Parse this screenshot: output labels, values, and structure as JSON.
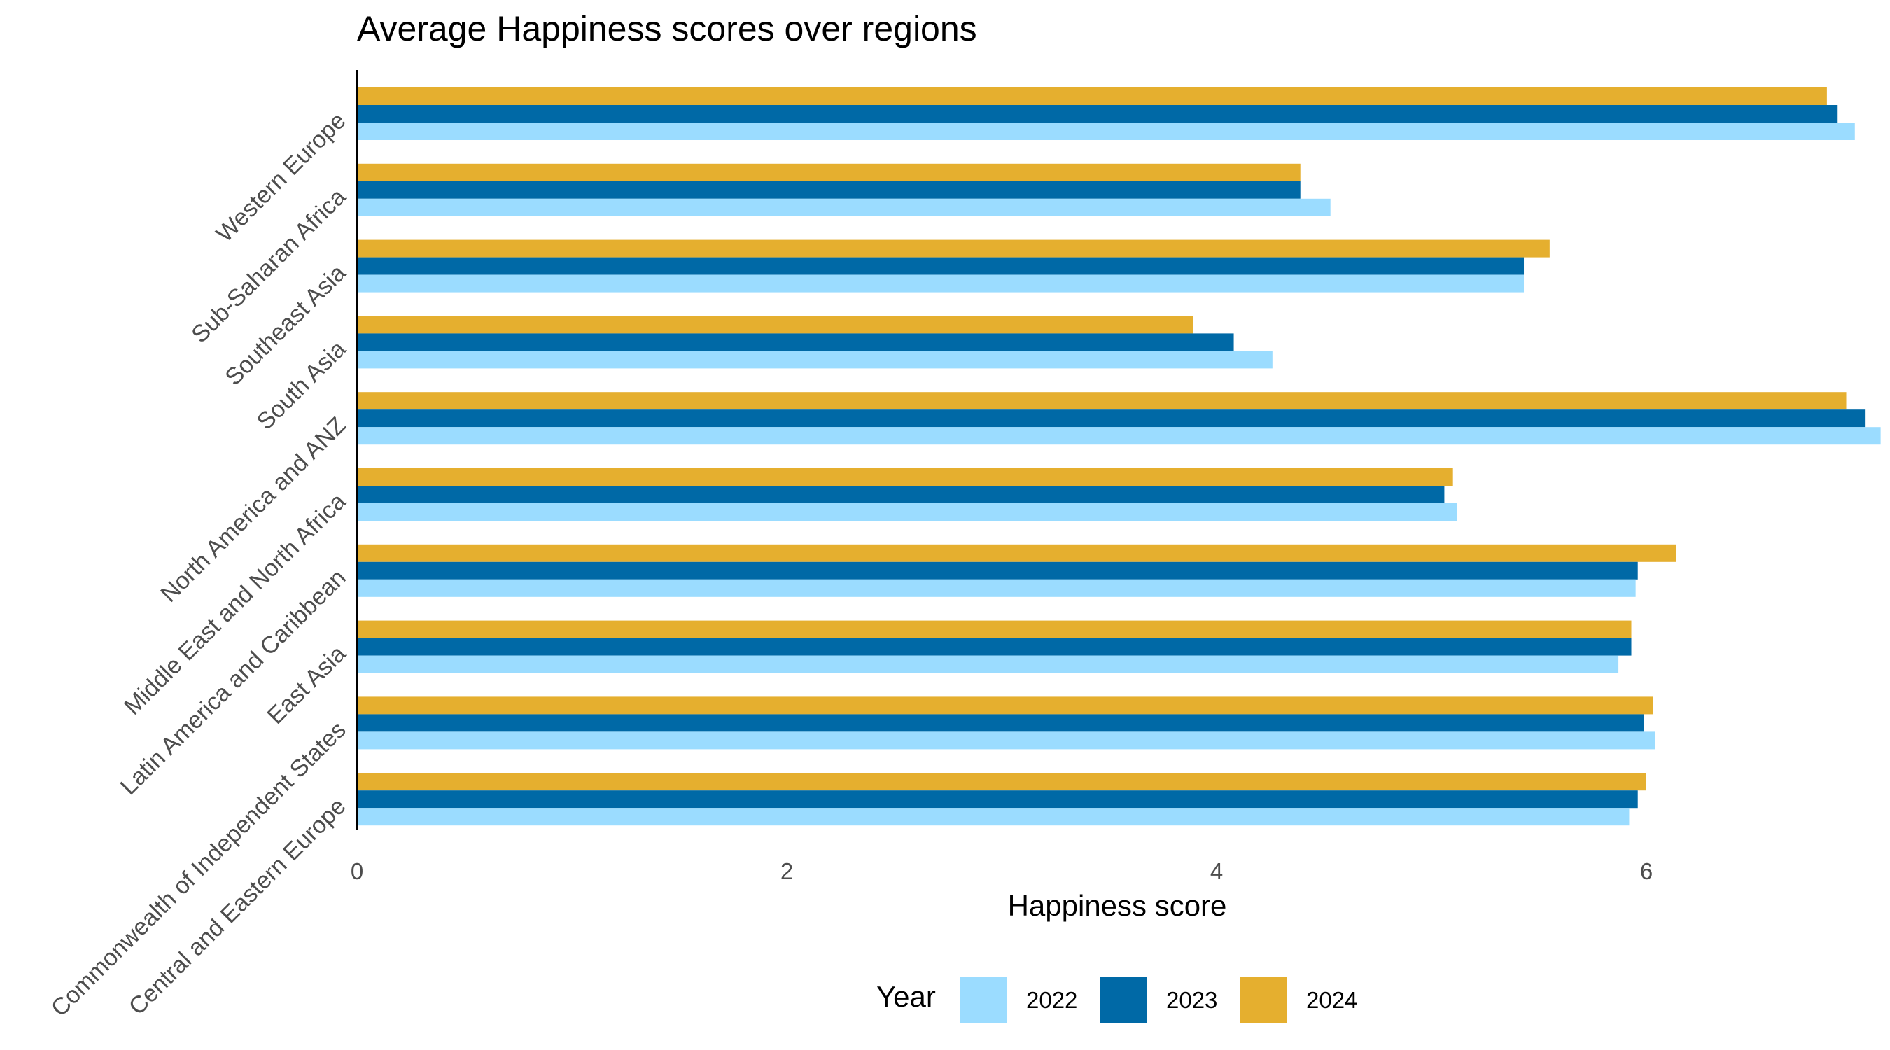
{
  "chart_data": {
    "type": "bar",
    "orientation": "horizontal",
    "title": "Average Happiness scores over regions",
    "xlabel": "Happiness score",
    "ylabel": "",
    "xlim": [
      0,
      7.1
    ],
    "xticks": [
      0,
      2,
      4,
      6
    ],
    "grid": false,
    "legend_title": "Year",
    "legend_position": "bottom",
    "categories": [
      "Western Europe",
      "Sub-Saharan Africa",
      "Southeast Asia",
      "South Asia",
      "North America and ANZ",
      "Middle East and North Africa",
      "Latin America and Caribbean",
      "East Asia",
      "Commonwealth of Independent States",
      "Central and Eastern Europe"
    ],
    "series": [
      {
        "name": "2022",
        "color": "#9BDCFF",
        "values": [
          6.97,
          4.53,
          5.43,
          4.26,
          7.09,
          5.12,
          5.95,
          5.87,
          6.04,
          5.92
        ]
      },
      {
        "name": "2023",
        "color": "#0069A6",
        "values": [
          6.89,
          4.39,
          5.43,
          4.08,
          7.02,
          5.06,
          5.96,
          5.93,
          5.99,
          5.96
        ]
      },
      {
        "name": "2024",
        "color": "#E5AF2F",
        "values": [
          6.84,
          4.39,
          5.55,
          3.89,
          6.93,
          5.1,
          6.14,
          5.93,
          6.03,
          6.0
        ]
      }
    ]
  }
}
